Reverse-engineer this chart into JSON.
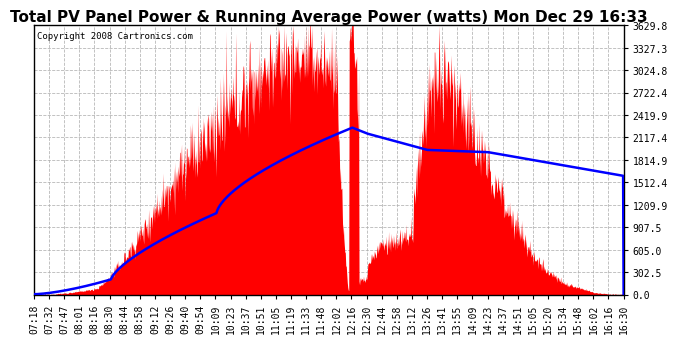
{
  "title": "Total PV Panel Power & Running Average Power (watts) Mon Dec 29 16:33",
  "copyright": "Copyright 2008 Cartronics.com",
  "background_color": "#ffffff",
  "plot_bg_color": "#ffffff",
  "yticks": [
    0.0,
    302.5,
    605.0,
    907.5,
    1209.9,
    1512.4,
    1814.9,
    2117.4,
    2419.9,
    2722.4,
    3024.8,
    3327.3,
    3629.8
  ],
  "ymax": 3629.8,
  "ymin": 0.0,
  "x_labels": [
    "07:18",
    "07:32",
    "07:47",
    "08:01",
    "08:16",
    "08:30",
    "08:44",
    "08:58",
    "09:12",
    "09:26",
    "09:40",
    "09:54",
    "10:09",
    "10:23",
    "10:37",
    "10:51",
    "11:05",
    "11:19",
    "11:33",
    "11:48",
    "12:02",
    "12:16",
    "12:30",
    "12:44",
    "12:58",
    "13:12",
    "13:26",
    "13:41",
    "13:55",
    "14:09",
    "14:23",
    "14:37",
    "14:51",
    "15:05",
    "15:20",
    "15:34",
    "15:48",
    "16:02",
    "16:16",
    "16:30"
  ],
  "pv_color": "#ff0000",
  "avg_color": "#0000ff",
  "grid_color": "#b0b0b0",
  "title_fontsize": 11,
  "tick_fontsize": 7,
  "copyright_fontsize": 6.5
}
